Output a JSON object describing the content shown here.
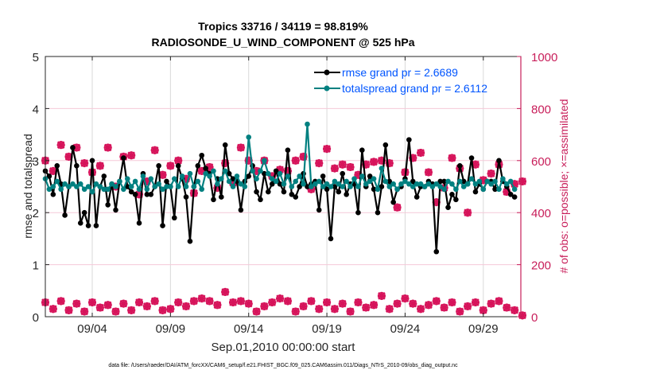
{
  "chart_data": {
    "type": "line",
    "title": [
      "Tropics 33716 / 34119 = 98.819%",
      "RADIOSONDE_U_WIND_COMPONENT @ 525 hPa"
    ],
    "xlabel": "Sep.01,2010 00:00:00 start",
    "ylabel": "rmse and totalspread",
    "ylabel_right": "# of obs: o=possible; ×=assimilated",
    "footnote": "data file: /Users/raeder/DAI/ATM_forcXX/CAM6_setup/f.e21.FHIST_BGC.f09_025.CAM6assim.011/Diags_NTrS_2010-09/obs_diag_output.nc",
    "x_unit": "days since Sep.01,2010 00:00",
    "xlim": [
      0,
      30.4
    ],
    "x_ticks": [
      {
        "value": 3,
        "label": "09/04"
      },
      {
        "value": 8,
        "label": "09/09"
      },
      {
        "value": 13,
        "label": "09/14"
      },
      {
        "value": 18,
        "label": "09/19"
      },
      {
        "value": 23,
        "label": "09/24"
      },
      {
        "value": 28,
        "label": "09/29"
      }
    ],
    "ylim": [
      0,
      5
    ],
    "y_ticks": [
      "0",
      "1",
      "2",
      "3",
      "4",
      "5"
    ],
    "ylim_right": [
      0,
      1000
    ],
    "y_ticks_right": [
      "0",
      "200",
      "400",
      "600",
      "800",
      "1000"
    ],
    "grid": true,
    "legend_position": "top-right",
    "colors": {
      "rmse": "#000000",
      "totalspread": "#008080",
      "obs": "#d6135a",
      "legend_text": "#0055ff",
      "right_axis": "#c81e5a"
    },
    "x_step_days": 0.25,
    "series": [
      {
        "name": "rmse grand pr = 2.6689",
        "axis": "left",
        "values": [
          2.8,
          2.7,
          2.35,
          2.9,
          2.55,
          1.95,
          2.5,
          3.25,
          2.9,
          1.8,
          2.0,
          1.75,
          3.0,
          1.75,
          2.5,
          2.7,
          2.15,
          2.55,
          2.05,
          2.6,
          3.05,
          2.5,
          2.4,
          2.35,
          1.8,
          2.75,
          2.35,
          2.35,
          2.5,
          2.9,
          1.75,
          2.6,
          2.5,
          1.9,
          2.9,
          2.65,
          2.3,
          1.45,
          2.5,
          2.9,
          3.1,
          2.85,
          2.75,
          2.25,
          2.65,
          2.3,
          3.3,
          2.75,
          2.65,
          2.6,
          2.05,
          2.6,
          2.7,
          2.9,
          2.4,
          2.25,
          2.75,
          2.4,
          2.55,
          2.8,
          2.55,
          2.4,
          3.2,
          2.35,
          2.3,
          2.5,
          2.75,
          2.5,
          2.55,
          2.6,
          2.05,
          2.7,
          2.45,
          1.5,
          2.5,
          2.4,
          2.75,
          2.35,
          2.55,
          2.55,
          2.0,
          3.2,
          2.5,
          2.7,
          2.45,
          2.0,
          2.5,
          3.3,
          2.6,
          2.2,
          2.45,
          2.5,
          2.65,
          3.4,
          2.6,
          2.3,
          2.5,
          2.5,
          2.6,
          2.55,
          1.25,
          2.6,
          2.6,
          2.1,
          2.35,
          2.25,
          2.9,
          2.6,
          2.55,
          3.05,
          2.4,
          2.55,
          2.45,
          2.6,
          2.6,
          2.45,
          3.0,
          2.6,
          2.5,
          2.35,
          2.3
        ]
      },
      {
        "name": "totalspread grand pr = 2.6112",
        "axis": "left",
        "values": [
          2.65,
          2.45,
          2.5,
          2.6,
          2.45,
          2.55,
          2.5,
          2.55,
          2.5,
          2.55,
          2.45,
          2.5,
          2.4,
          2.55,
          2.5,
          2.45,
          2.45,
          2.55,
          2.5,
          2.6,
          2.45,
          2.65,
          2.5,
          2.6,
          2.45,
          2.7,
          2.45,
          2.65,
          2.5,
          2.55,
          2.45,
          2.5,
          2.5,
          2.65,
          2.5,
          2.7,
          2.5,
          2.75,
          2.5,
          2.6,
          2.45,
          2.75,
          2.7,
          2.8,
          2.55,
          2.65,
          2.8,
          2.6,
          2.5,
          2.7,
          2.55,
          2.5,
          3.45,
          2.8,
          2.65,
          2.8,
          3.0,
          2.75,
          2.65,
          2.6,
          2.75,
          2.55,
          2.7,
          2.5,
          2.6,
          2.7,
          2.55,
          3.7,
          2.5,
          2.55,
          2.6,
          2.5,
          2.55,
          2.5,
          2.6,
          2.55,
          2.5,
          2.6,
          2.5,
          2.65,
          2.5,
          2.7,
          2.55,
          2.6,
          2.65,
          2.45,
          2.85,
          2.6,
          2.5,
          2.55,
          2.45,
          2.55,
          2.6,
          2.55,
          2.5,
          2.55,
          2.55,
          2.5,
          2.55,
          2.5,
          2.55,
          2.5,
          2.45,
          2.6,
          2.55,
          2.45,
          2.6,
          2.5,
          2.55,
          2.65,
          2.55,
          2.6,
          2.45,
          2.6,
          2.55,
          2.6,
          2.45,
          2.65,
          2.55,
          2.6,
          2.45
        ]
      },
      {
        "name": "obs possible/assimilated (upper)",
        "axis": "right",
        "x_step_days": 0.5,
        "values": [
          600,
          560,
          660,
          615,
          650,
          590,
          555,
          580,
          650,
          500,
          615,
          620,
          470,
          520,
          640,
          545,
          580,
          600,
          530,
          475,
          560,
          575,
          495,
          590,
          515,
          650,
          600,
          560,
          600,
          540,
          565,
          560,
          600,
          615,
          490,
          590,
          645,
          570,
          585,
          575,
          545,
          585,
          595,
          600,
          590,
          420,
          555,
          610,
          630,
          555,
          440,
          495,
          610,
          570,
          400,
          585,
          525,
          550,
          585,
          480,
          510,
          520
        ]
      },
      {
        "name": "obs possible/assimilated (lower)",
        "axis": "right",
        "x_step_days": 0.5,
        "values": [
          55,
          30,
          60,
          25,
          50,
          20,
          55,
          35,
          45,
          20,
          50,
          25,
          55,
          40,
          60,
          25,
          30,
          55,
          40,
          60,
          70,
          60,
          45,
          95,
          55,
          60,
          50,
          20,
          40,
          55,
          70,
          60,
          20,
          40,
          60,
          30,
          55,
          30,
          50,
          20,
          55,
          35,
          45,
          80,
          30,
          50,
          70,
          50,
          30,
          45,
          60,
          35,
          55,
          20,
          40,
          55,
          25,
          50,
          60,
          35,
          25,
          5
        ]
      }
    ]
  }
}
